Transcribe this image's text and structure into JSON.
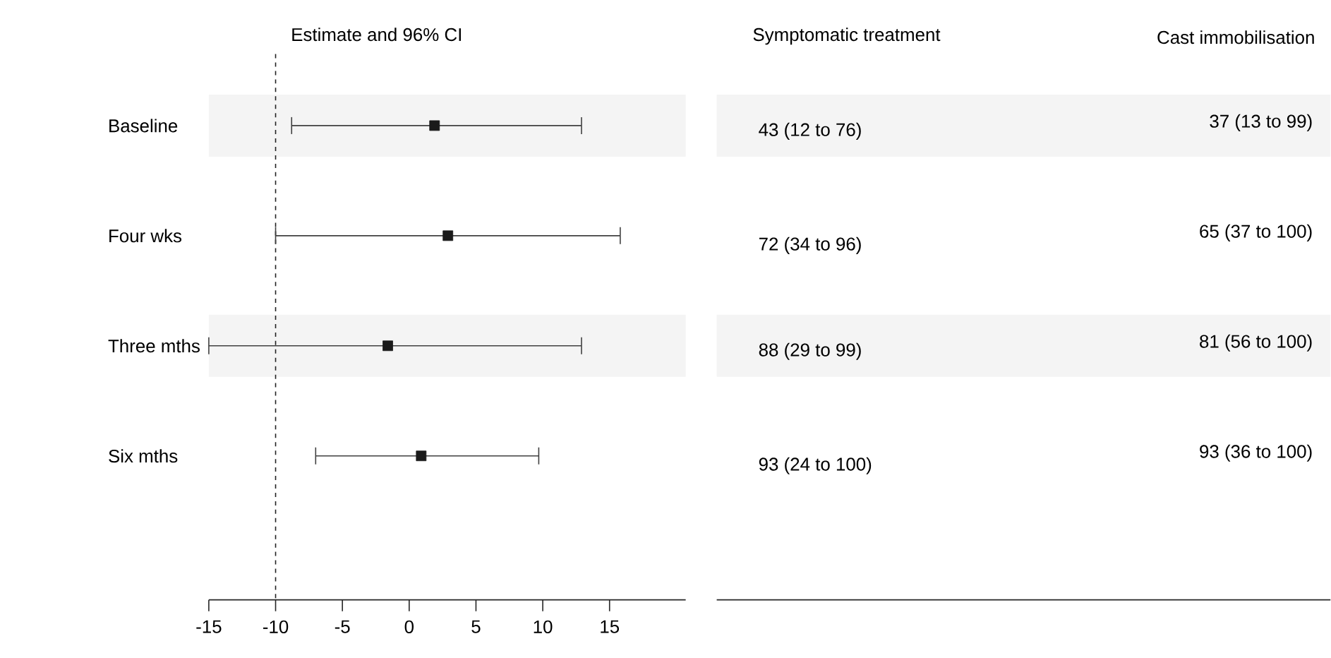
{
  "chart_data": {
    "type": "scatter",
    "orientation": "horizontal",
    "xlabel": "Estimate and 96% CI",
    "categories": [
      "Baseline",
      "Four wks",
      "Three mths",
      "Six mths"
    ],
    "values": [
      1.9,
      2.9,
      -1.6,
      0.9
    ],
    "errors": [
      [
        -8.8,
        12.9
      ],
      [
        -10,
        15.8
      ],
      [
        -15,
        12.9
      ],
      [
        -7,
        9.7
      ]
    ],
    "color": "#1a1a1a",
    "marker": "square",
    "xlim": [
      -15,
      20.7
    ],
    "xticks": [
      -15,
      -10,
      -5,
      0,
      5,
      10,
      15
    ],
    "ref_lines": [
      {
        "axis": "x",
        "value": -10,
        "line_style": "dashed",
        "color": "#222222"
      }
    ],
    "annotations": [
      "Symptomatic treatment",
      "Cast immobilisation",
      "43 (12 to 76)",
      "37 (13 to 99)",
      "72 (34 to 96)",
      "65 (37 to 100)",
      "88 (29 to 99)",
      "81 (56 to 100)",
      "93 (24 to 100)",
      "93 (36 to 100)"
    ]
  }
}
